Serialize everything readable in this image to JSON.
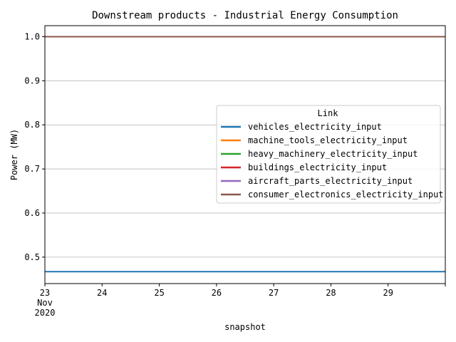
{
  "chart_data": {
    "type": "line",
    "title": "Downstream products - Industrial Energy Consumption",
    "xlabel": "snapshot",
    "ylabel": "Power (MW)",
    "x": [
      "2020-11-23",
      "2020-11-24",
      "2020-11-25",
      "2020-11-26",
      "2020-11-27",
      "2020-11-28",
      "2020-11-29",
      "2020-11-30"
    ],
    "xlim": [
      "2020-11-23",
      "2020-11-30"
    ],
    "ylim": [
      0.44,
      1.025
    ],
    "x_tick_labels": [
      {
        "x": "2020-11-23",
        "lines": [
          "23",
          "Nov",
          "2020"
        ]
      },
      {
        "x": "2020-11-24",
        "lines": [
          "24"
        ]
      },
      {
        "x": "2020-11-25",
        "lines": [
          "25"
        ]
      },
      {
        "x": "2020-11-26",
        "lines": [
          "26"
        ]
      },
      {
        "x": "2020-11-27",
        "lines": [
          "27"
        ]
      },
      {
        "x": "2020-11-28",
        "lines": [
          "28"
        ]
      },
      {
        "x": "2020-11-29",
        "lines": [
          "29"
        ]
      }
    ],
    "y_ticks": [
      0.5,
      0.6,
      0.7,
      0.8,
      0.9,
      1.0
    ],
    "y_tick_labels": [
      "0.5",
      "0.6",
      "0.7",
      "0.8",
      "0.9",
      "1.0"
    ],
    "grid": "horizontal",
    "legend": {
      "title": "Link",
      "position": "center-right"
    },
    "series": [
      {
        "name": "vehicles_electricity_input",
        "color": "#1f77b4",
        "values": [
          0.467,
          0.467,
          0.467,
          0.467,
          0.467,
          0.467,
          0.467,
          0.467
        ]
      },
      {
        "name": "machine_tools_electricity_input",
        "color": "#ff7f0e",
        "values": [
          1.0,
          1.0,
          1.0,
          1.0,
          1.0,
          1.0,
          1.0,
          1.0
        ]
      },
      {
        "name": "heavy_machinery_electricity_input",
        "color": "#2ca02c",
        "values": [
          1.0,
          1.0,
          1.0,
          1.0,
          1.0,
          1.0,
          1.0,
          1.0
        ]
      },
      {
        "name": "buildings_electricity_input",
        "color": "#d62728",
        "values": [
          1.0,
          1.0,
          1.0,
          1.0,
          1.0,
          1.0,
          1.0,
          1.0
        ]
      },
      {
        "name": "aircraft_parts_electricity_input",
        "color": "#9467bd",
        "values": [
          1.0,
          1.0,
          1.0,
          1.0,
          1.0,
          1.0,
          1.0,
          1.0
        ]
      },
      {
        "name": "consumer_electronics_electricity_input",
        "color": "#8c564b",
        "values": [
          1.0,
          1.0,
          1.0,
          1.0,
          1.0,
          1.0,
          1.0,
          1.0
        ]
      }
    ]
  }
}
